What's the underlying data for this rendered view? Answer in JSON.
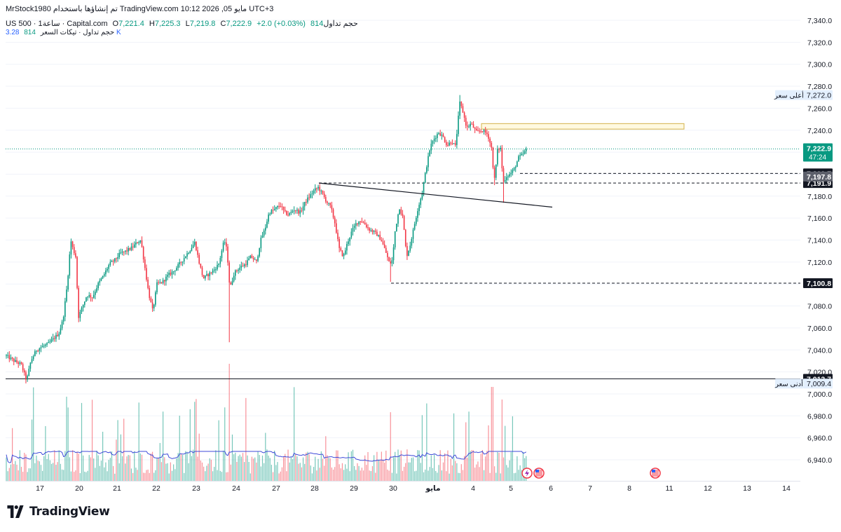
{
  "header": {
    "author": "MrStock1980",
    "published_text": "تم إنشاؤها باستخدام TradingView.com",
    "date_time": "مايو 05, 2026 10:12 UTC+3",
    "symbol_line": "US 500 · 1ساعة · Capital.com",
    "open_label": "O",
    "open": "7,221.4",
    "high_label": "H",
    "high": "7,225.3",
    "low_label": "L",
    "low": "7,219.8",
    "close_label": "C",
    "close": "7,222.9",
    "change": "+2.0 (+0.03%)",
    "volume_label": "حجم تداول",
    "volume": "814",
    "indicator_label": "حجم تداول · تيكات السعر",
    "indicator_v1": "814",
    "indicator_v2": "3.28 K"
  },
  "brand": {
    "name": "TradingView"
  },
  "colors": {
    "up": "#089981",
    "down": "#f23645",
    "volume_ma": "#3f4bd9",
    "grid": "#f0f3fa",
    "axis_text": "#131722",
    "box_fill": "#fff9e0",
    "box_border": "#d4b24a"
  },
  "icons": [
    "flash-event-icon",
    "us-flag-event-icon"
  ],
  "chart_data": {
    "type": "candlestick",
    "symbol": "US 500",
    "timeframe": "1h",
    "y_axis": {
      "range": [
        6920,
        7350
      ],
      "ticks": [
        "7,340.0",
        "7,320.0",
        "7,300.0",
        "7,280.0",
        "7,260.0",
        "7,240.0",
        "7,220.0",
        "7,200.0",
        "7,180.0",
        "7,160.0",
        "7,140.0",
        "7,120.0",
        "7,100.0",
        "7,080.0",
        "7,060.0",
        "7,040.0",
        "7,020.0",
        "7,000.0",
        "6,980.0",
        "6,960.0",
        "6,940.0"
      ],
      "tick_values": [
        7340,
        7320,
        7300,
        7280,
        7260,
        7240,
        7220,
        7200,
        7180,
        7160,
        7140,
        7120,
        7100,
        7080,
        7060,
        7040,
        7020,
        7000,
        6980,
        6960,
        6940
      ]
    },
    "x_axis": {
      "ticks": [
        {
          "label": "17",
          "x": 57
        },
        {
          "label": "20",
          "x": 113
        },
        {
          "label": "21",
          "x": 167
        },
        {
          "label": "22",
          "x": 223
        },
        {
          "label": "23",
          "x": 280
        },
        {
          "label": "24",
          "x": 337
        },
        {
          "label": "27",
          "x": 394
        },
        {
          "label": "28",
          "x": 449
        },
        {
          "label": "29",
          "x": 505
        },
        {
          "label": "30",
          "x": 561
        },
        {
          "label": "مايو",
          "x": 618
        },
        {
          "label": "4",
          "x": 675
        },
        {
          "label": "5",
          "x": 729
        },
        {
          "label": "6",
          "x": 786
        },
        {
          "label": "7",
          "x": 842
        },
        {
          "label": "8",
          "x": 898
        },
        {
          "label": "11",
          "x": 955
        },
        {
          "label": "12",
          "x": 1010
        },
        {
          "label": "13",
          "x": 1066
        },
        {
          "label": "14",
          "x": 1122
        }
      ]
    },
    "price_path": [
      [
        8,
        7035
      ],
      [
        20,
        7030
      ],
      [
        30,
        7027
      ],
      [
        38,
        7012
      ],
      [
        44,
        7030
      ],
      [
        52,
        7040
      ],
      [
        60,
        7043
      ],
      [
        68,
        7045
      ],
      [
        76,
        7050
      ],
      [
        84,
        7055
      ],
      [
        90,
        7068
      ],
      [
        96,
        7100
      ],
      [
        101,
        7140
      ],
      [
        104,
        7132
      ],
      [
        108,
        7125
      ],
      [
        112,
        7070
      ],
      [
        118,
        7080
      ],
      [
        124,
        7090
      ],
      [
        132,
        7088
      ],
      [
        140,
        7100
      ],
      [
        148,
        7108
      ],
      [
        156,
        7118
      ],
      [
        164,
        7122
      ],
      [
        172,
        7128
      ],
      [
        180,
        7130
      ],
      [
        188,
        7133
      ],
      [
        196,
        7138
      ],
      [
        201,
        7140
      ],
      [
        206,
        7118
      ],
      [
        212,
        7092
      ],
      [
        218,
        7075
      ],
      [
        224,
        7100
      ],
      [
        232,
        7102
      ],
      [
        240,
        7108
      ],
      [
        248,
        7112
      ],
      [
        256,
        7118
      ],
      [
        264,
        7125
      ],
      [
        272,
        7132
      ],
      [
        278,
        7138
      ],
      [
        284,
        7120
      ],
      [
        290,
        7105
      ],
      [
        296,
        7108
      ],
      [
        304,
        7112
      ],
      [
        312,
        7118
      ],
      [
        320,
        7140
      ],
      [
        324,
        7130
      ],
      [
        328,
        7095
      ],
      [
        334,
        7110
      ],
      [
        342,
        7115
      ],
      [
        350,
        7118
      ],
      [
        358,
        7125
      ],
      [
        366,
        7120
      ],
      [
        372,
        7140
      ],
      [
        378,
        7150
      ],
      [
        384,
        7165
      ],
      [
        392,
        7168
      ],
      [
        400,
        7172
      ],
      [
        406,
        7165
      ],
      [
        412,
        7163
      ],
      [
        420,
        7168
      ],
      [
        428,
        7165
      ],
      [
        436,
        7175
      ],
      [
        442,
        7180
      ],
      [
        448,
        7185
      ],
      [
        454,
        7188
      ],
      [
        460,
        7182
      ],
      [
        466,
        7175
      ],
      [
        472,
        7170
      ],
      [
        478,
        7155
      ],
      [
        484,
        7132
      ],
      [
        490,
        7125
      ],
      [
        496,
        7138
      ],
      [
        502,
        7148
      ],
      [
        508,
        7155
      ],
      [
        514,
        7158
      ],
      [
        520,
        7155
      ],
      [
        526,
        7150
      ],
      [
        532,
        7148
      ],
      [
        538,
        7145
      ],
      [
        544,
        7140
      ],
      [
        550,
        7130
      ],
      [
        556,
        7118
      ],
      [
        560,
        7122
      ],
      [
        564,
        7150
      ],
      [
        570,
        7170
      ],
      [
        575,
        7160
      ],
      [
        580,
        7125
      ],
      [
        585,
        7135
      ],
      [
        590,
        7150
      ],
      [
        596,
        7168
      ],
      [
        602,
        7182
      ],
      [
        608,
        7205
      ],
      [
        614,
        7225
      ],
      [
        620,
        7233
      ],
      [
        626,
        7238
      ],
      [
        632,
        7234
      ],
      [
        638,
        7226
      ],
      [
        644,
        7230
      ],
      [
        650,
        7225
      ],
      [
        656,
        7265
      ],
      [
        660,
        7258
      ],
      [
        666,
        7242
      ],
      [
        672,
        7246
      ],
      [
        680,
        7238
      ],
      [
        688,
        7240
      ],
      [
        696,
        7236
      ],
      [
        702,
        7222
      ],
      [
        705,
        7192
      ],
      [
        710,
        7222
      ],
      [
        714,
        7225
      ],
      [
        718,
        7192
      ],
      [
        722,
        7198
      ],
      [
        728,
        7200
      ],
      [
        734,
        7205
      ],
      [
        740,
        7215
      ],
      [
        746,
        7218
      ],
      [
        752,
        7223
      ]
    ],
    "wick_extremes": [
      {
        "x": 656,
        "high": 7272.0
      },
      {
        "x": 705,
        "low": 7190.0
      },
      {
        "x": 718,
        "low": 7174.0
      },
      {
        "x": 558,
        "low": 7102.0
      },
      {
        "x": 38,
        "low": 7009.5
      },
      {
        "x": 328,
        "low": 7047.0
      }
    ],
    "price_levels": [
      {
        "name": "current",
        "value": 7222.9,
        "label": "7,222.9",
        "sub_label": "47:24",
        "style": "dotted",
        "color": "#089981"
      },
      {
        "name": "level-7200-7",
        "value": 7200.7,
        "label": "7,200.7",
        "style": "dashed",
        "start_x": 742
      },
      {
        "name": "level-7191-9",
        "value": 7191.9,
        "label": "7,191.9",
        "style": "dashed",
        "start_x": 455
      },
      {
        "name": "level-7100-8",
        "value": 7100.8,
        "label": "7,100.8",
        "style": "dashed",
        "start_x": 558
      },
      {
        "name": "level-7013-7",
        "value": 7013.7,
        "label": "7,013.7",
        "style": "solid",
        "start_x": 8
      }
    ],
    "tags": [
      {
        "name": "session-high",
        "value": 7272.0,
        "label": "7,272.0",
        "text": "أعلى سعر"
      },
      {
        "name": "session-low",
        "value": 7009.4,
        "label": "7,009.4",
        "text": "أدنى سعر"
      },
      {
        "name": "vwap-like",
        "value": 7197.8,
        "label": "7,197.8"
      }
    ],
    "trendline": {
      "x1": 455,
      "v1": 7191.9,
      "x2": 788,
      "v2": 7170.0
    },
    "rectangle": {
      "x1": 687,
      "x2": 976,
      "v_top": 7246.0,
      "v_bottom": 7241.0
    },
    "volume_panel": {
      "bars": 350,
      "ma_color": "#3f4bd9"
    }
  }
}
